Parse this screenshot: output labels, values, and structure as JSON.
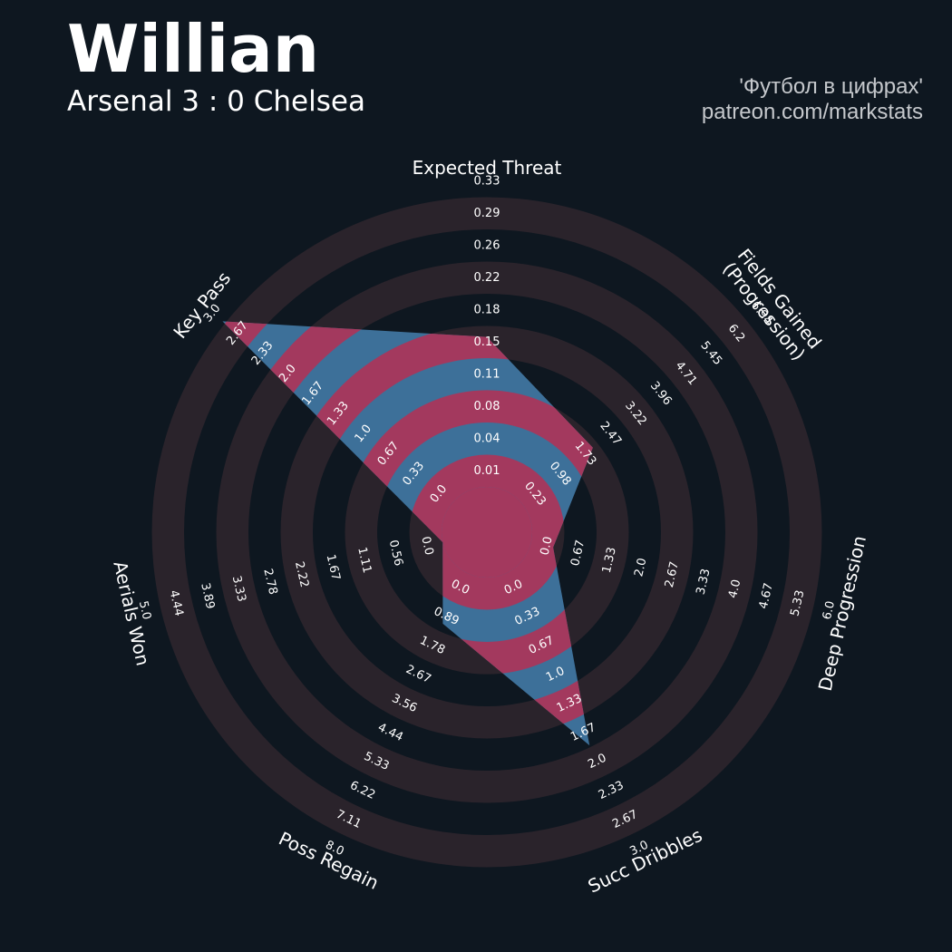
{
  "header": {
    "player": "Willian",
    "match": "Arsenal 3 : 0 Chelsea",
    "credit_line1": "'Футбол в цифрах'",
    "credit_line2": "patreon.com/markstats"
  },
  "colors": {
    "background": "#0e1720",
    "ring_band": "#2a232b",
    "player_fill": "#3d7099",
    "highlight_fill": "#a3395e",
    "text": "#ffffff",
    "credit_text": "#c5c8cc"
  },
  "chart_data": {
    "type": "radar",
    "title": "Willian",
    "subtitle": "Arsenal 3 : 0 Chelsea",
    "axes": [
      {
        "name": "Expected Threat",
        "label_lines": [
          "Expected Threat"
        ],
        "ticks": [
          "0.01",
          "0.04",
          "0.08",
          "0.11",
          "0.15",
          "0.18",
          "0.22",
          "0.26",
          "0.29",
          "0.33"
        ],
        "range": [
          -0.025,
          0.33
        ],
        "value": 0.18
      },
      {
        "name": "Fields Gained (Progression)",
        "label_lines": [
          "Fields Gained",
          "(Progression)"
        ],
        "ticks": [
          "0.23",
          "0.98",
          "1.73",
          "2.47",
          "3.22",
          "3.96",
          "4.71",
          "5.45",
          "6.2",
          "6.94"
        ],
        "range": [
          -0.52,
          6.94
        ],
        "value": 2.47
      },
      {
        "name": "Deep Progression",
        "label_lines": [
          "Deep Progression"
        ],
        "ticks": [
          "0.0",
          "0.67",
          "1.33",
          "2.0",
          "2.67",
          "3.33",
          "4.0",
          "4.67",
          "5.33",
          "6.0"
        ],
        "range": [
          -0.67,
          6.0
        ],
        "value": 0.67
      },
      {
        "name": "Succ Dribbles",
        "label_lines": [
          "Succ Dribbles"
        ],
        "ticks": [
          "0.0",
          "0.33",
          "0.67",
          "1.0",
          "1.33",
          "1.67",
          "2.0",
          "2.33",
          "2.67",
          "3.0"
        ],
        "range": [
          -0.33,
          3.0
        ],
        "value": 2.0
      },
      {
        "name": "Poss Regain",
        "label_lines": [
          "Poss Regain"
        ],
        "ticks": [
          "0.0",
          "0.89",
          "1.78",
          "2.67",
          "3.56",
          "4.44",
          "5.33",
          "6.22",
          "7.11",
          "8.0"
        ],
        "range": [
          -0.89,
          8.0
        ],
        "value": 1.78
      },
      {
        "name": "Aerials Won",
        "label_lines": [
          "Aerials Won"
        ],
        "ticks": [
          "0.0",
          "0.56",
          "1.11",
          "1.67",
          "2.22",
          "2.78",
          "3.33",
          "3.89",
          "4.44",
          "5.0"
        ],
        "range": [
          -0.56,
          5.0
        ],
        "value": 0.0
      },
      {
        "name": "Key Pass",
        "label_lines": [
          "Key Pass"
        ],
        "ticks": [
          "0.0",
          "0.33",
          "0.67",
          "1.0",
          "1.33",
          "1.67",
          "2.0",
          "2.33",
          "2.67",
          "3.0"
        ],
        "range": [
          -0.33,
          3.0
        ],
        "value": 3.0
      }
    ],
    "grid": true,
    "legend": "none"
  }
}
